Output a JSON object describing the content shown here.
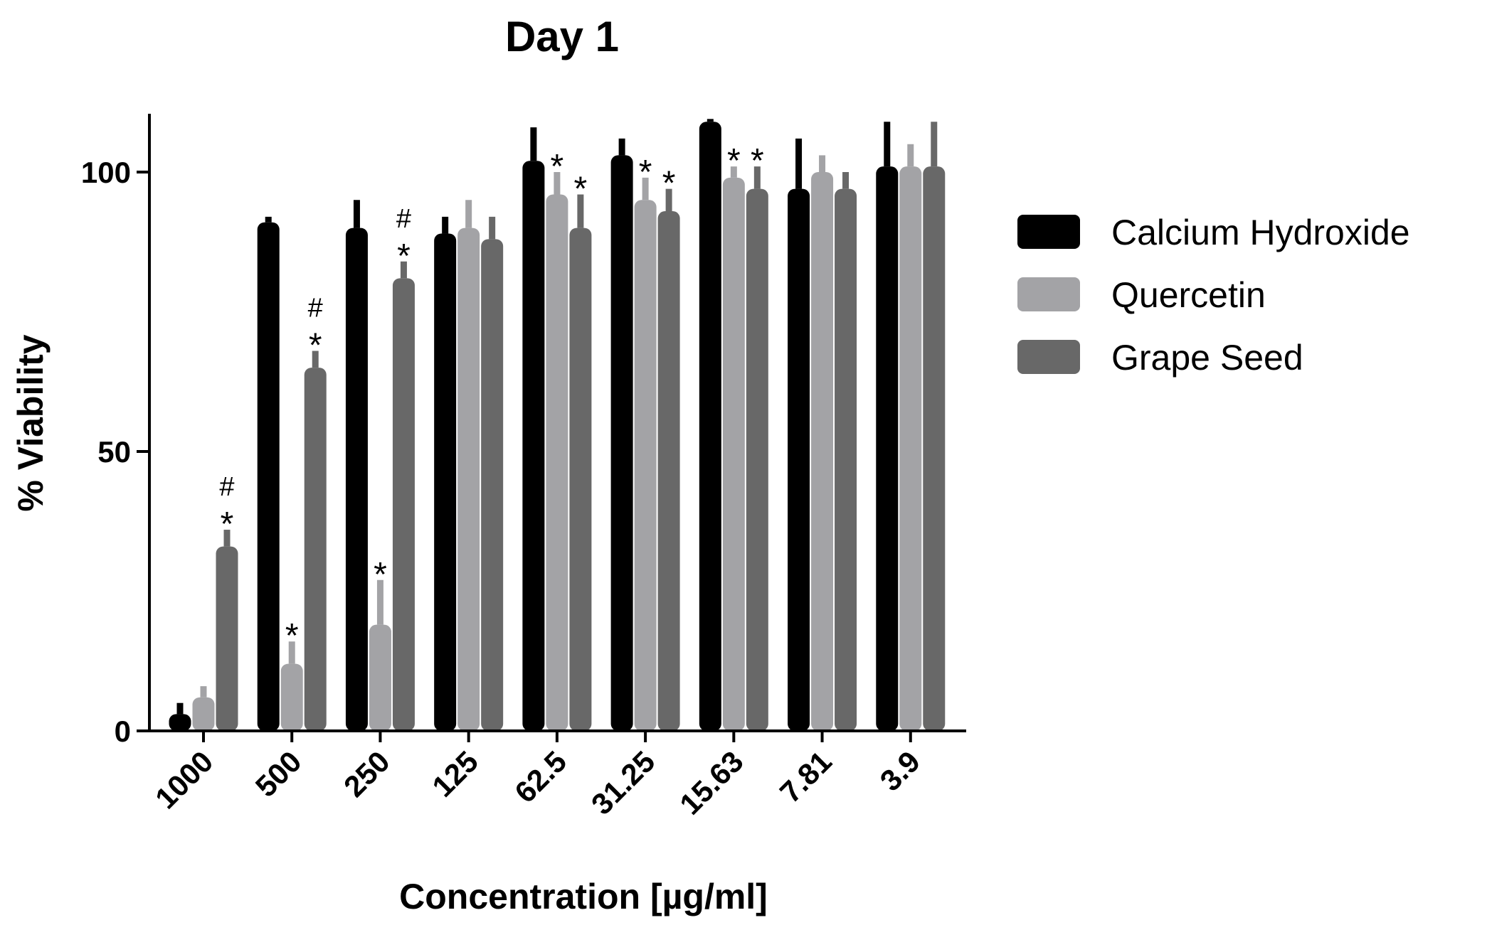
{
  "chart_data": {
    "type": "bar",
    "title": "Day 1",
    "xlabel": "Concentration [µg/ml]",
    "ylabel": "% Viability",
    "ylim": [
      0,
      110
    ],
    "yticks": [
      0,
      50,
      100
    ],
    "ytick_labels": [
      "0",
      "50",
      "100"
    ],
    "grid": false,
    "legend_position": "right",
    "categories": [
      "1000",
      "500",
      "250",
      "125",
      "62.5",
      "31.25",
      "15.63",
      "7.81",
      "3.9"
    ],
    "series": [
      {
        "name": "Calcium Hydroxide",
        "color": "#000000",
        "values": [
          3,
          91,
          90,
          89,
          102,
          103,
          109,
          97,
          101
        ],
        "errors": [
          2,
          1,
          5,
          3,
          6,
          3,
          0.5,
          9,
          8
        ],
        "annotations": [
          "",
          "",
          "",
          "",
          "",
          "",
          "",
          "",
          ""
        ]
      },
      {
        "name": "Quercetin",
        "color": "#a3a3a6",
        "values": [
          6,
          12,
          19,
          90,
          96,
          95,
          99,
          100,
          101
        ],
        "errors": [
          2,
          4,
          8,
          5,
          4,
          4,
          2,
          3,
          4
        ],
        "annotations": [
          "",
          "*",
          "*",
          "",
          "*",
          "*",
          "*",
          "",
          ""
        ]
      },
      {
        "name": "Grape Seed",
        "color": "#686868",
        "values": [
          33,
          65,
          81,
          88,
          90,
          93,
          97,
          97,
          101
        ],
        "errors": [
          3,
          3,
          3,
          4,
          6,
          4,
          4,
          3,
          8
        ],
        "annotations": [
          "*#",
          "*#",
          "*#",
          "",
          "*",
          "*",
          "*",
          "",
          ""
        ]
      }
    ]
  }
}
